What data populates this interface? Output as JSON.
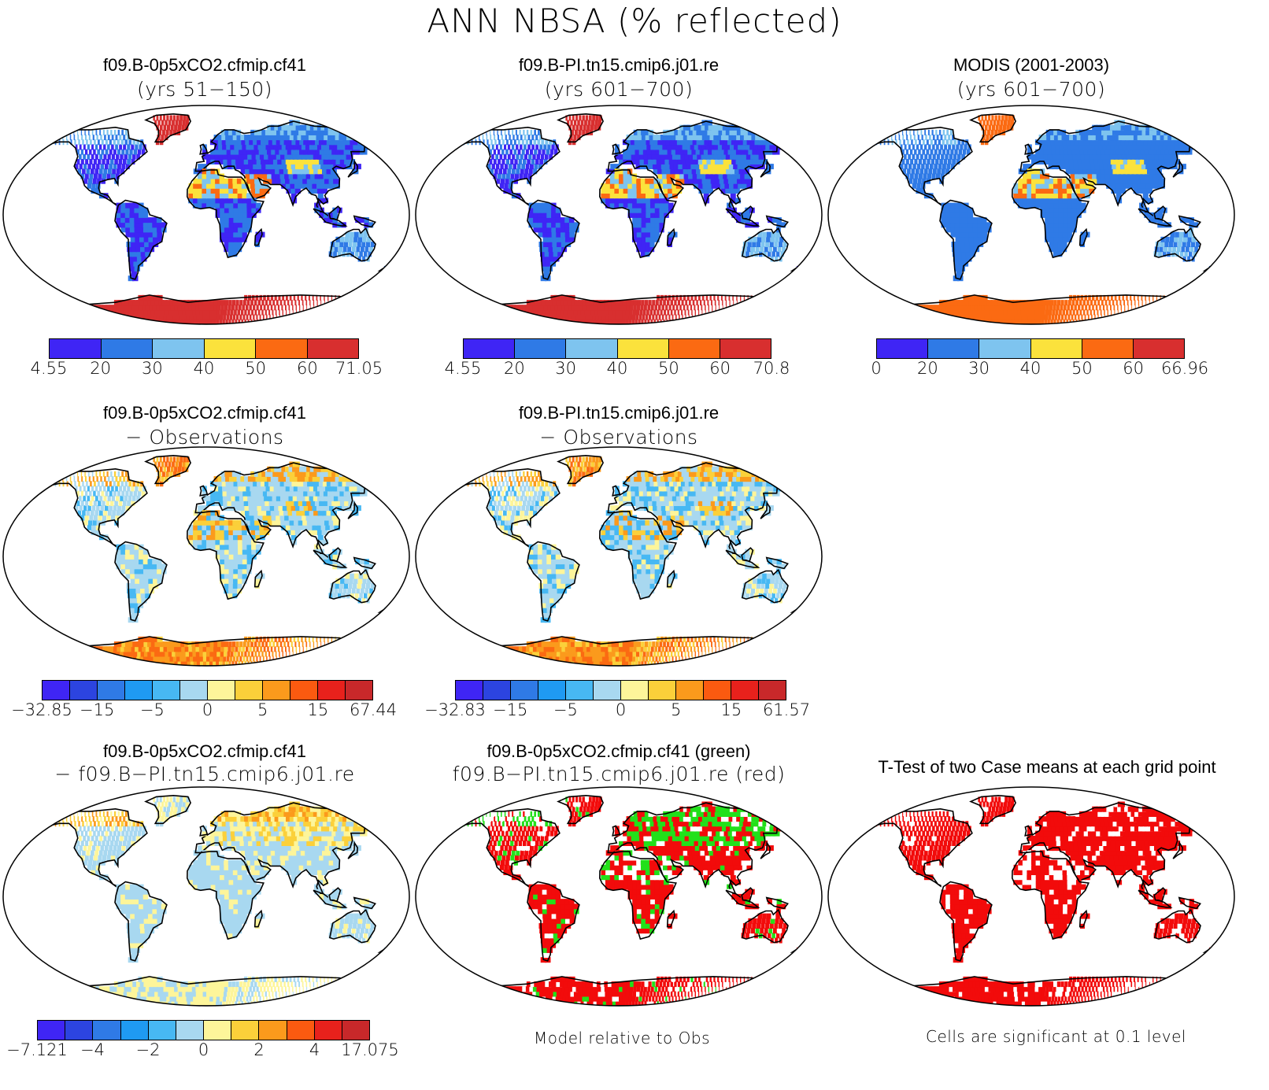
{
  "title": "ANN NBSA (% reflected)",
  "panels": [
    {
      "id": "p1",
      "line1": "f09.B-0p5xCO2.cfmip.cf41",
      "line2": "(yrs 51−150)",
      "scheme": "main",
      "colorbar": {
        "colors": [
          "#3f25f5",
          "#2f7ae6",
          "#7ec4ef",
          "#fbe23c",
          "#fb6a12",
          "#d82f2f"
        ],
        "ticks": [
          "4.55",
          "20",
          "30",
          "40",
          "50",
          "60",
          "71.05"
        ]
      }
    },
    {
      "id": "p2",
      "line1": "f09.B-PI.tn15.cmip6.j01.re",
      "line2": "(yrs 601−700)",
      "scheme": "main",
      "colorbar": {
        "colors": [
          "#3f25f5",
          "#2f7ae6",
          "#7ec4ef",
          "#fbe23c",
          "#fb6a12",
          "#d82f2f"
        ],
        "ticks": [
          "4.55",
          "20",
          "30",
          "40",
          "50",
          "60",
          "70.8"
        ]
      }
    },
    {
      "id": "p3",
      "line1": "MODIS (2001-2003)",
      "line2": "(yrs 601−700)",
      "scheme": "obs",
      "colorbar": {
        "colors": [
          "#3f25f5",
          "#2f7ae6",
          "#7ec4ef",
          "#fbe23c",
          "#fb6a12",
          "#d82f2f"
        ],
        "ticks": [
          "0",
          "20",
          "30",
          "40",
          "50",
          "60",
          "66.96"
        ]
      }
    },
    {
      "id": "p4",
      "line1": "f09.B-0p5xCO2.cfmip.cf41",
      "line2": "− Observations",
      "scheme": "diff",
      "colorbar": {
        "colors": [
          "#3f25f5",
          "#2c44e0",
          "#2f7ae6",
          "#1f9af2",
          "#47b8f3",
          "#a8d8f0",
          "#fdf59a",
          "#fbd03a",
          "#fb9a1c",
          "#fb5a10",
          "#e8211c",
          "#c8282a"
        ],
        "ticks": [
          "−32.85",
          "−15",
          "−5",
          "0",
          "5",
          "15",
          "67.44"
        ]
      }
    },
    {
      "id": "p5",
      "line1": "f09.B-PI.tn15.cmip6.j01.re",
      "line2": "− Observations",
      "scheme": "diff",
      "colorbar": {
        "colors": [
          "#3f25f5",
          "#2c44e0",
          "#2f7ae6",
          "#1f9af2",
          "#47b8f3",
          "#a8d8f0",
          "#fdf59a",
          "#fbd03a",
          "#fb9a1c",
          "#fb5a10",
          "#e8211c",
          "#c8282a"
        ],
        "ticks": [
          "−32.83",
          "−15",
          "−5",
          "0",
          "5",
          "15",
          "61.57"
        ]
      }
    },
    {
      "id": "p6",
      "line1": "f09.B-0p5xCO2.cfmip.cf41",
      "line2": "− f09.B−PI.tn15.cmip6.j01.re",
      "scheme": "modeldiff",
      "colorbar": {
        "colors": [
          "#3f25f5",
          "#2c44e0",
          "#2f7ae6",
          "#1f9af2",
          "#47b8f3",
          "#a8d8f0",
          "#fdf59a",
          "#fbd03a",
          "#fb9a1c",
          "#fb5a10",
          "#e8211c",
          "#c8282a"
        ],
        "ticks": [
          "−7.121",
          "−4",
          "−2",
          "0",
          "2",
          "4",
          "17.075"
        ]
      }
    },
    {
      "id": "p7",
      "line1": "f09.B-0p5xCO2.cfmip.cf41 (green)",
      "line2": "f09.B−PI.tn15.cmip6.j01.re (red)",
      "scheme": "greenred",
      "note": "Model relative to Obs"
    },
    {
      "id": "p8",
      "line1": "T-Test of two Case means at each grid point",
      "line2": "",
      "scheme": "ttest",
      "note": "Cells are significant at 0.1 level"
    }
  ],
  "colors": {
    "outline": "#000000",
    "green": "#22e01a",
    "red": "#f20b0b"
  }
}
